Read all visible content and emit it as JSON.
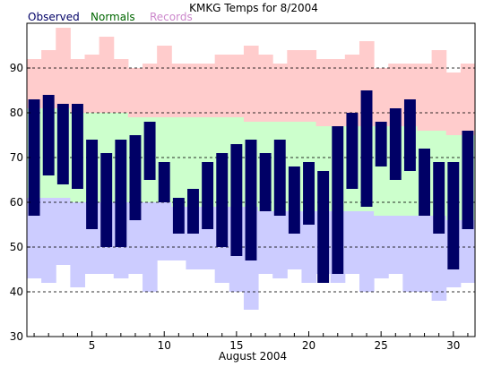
{
  "chart_data": {
    "type": "bar",
    "title": "KMKG Temps for 8/2004",
    "xlabel": "August 2004",
    "ylabel": "",
    "ylim": [
      30,
      100
    ],
    "yticks": [
      30,
      40,
      50,
      60,
      70,
      80,
      90
    ],
    "xticks": [
      5,
      10,
      15,
      20,
      25,
      30
    ],
    "grid": "dashed horizontal",
    "legend_placement": "top-left",
    "colors": {
      "observed": "#000066",
      "normals": "#ccffcc",
      "records": "#ffcccc",
      "record_low_band": "#ccccff",
      "observed_legend": "#000066",
      "normals_legend": "#006600",
      "records_legend": "#cc88cc"
    },
    "legend": [
      "Observed",
      "Normals",
      "Records"
    ],
    "days": [
      1,
      2,
      3,
      4,
      5,
      6,
      7,
      8,
      9,
      10,
      11,
      12,
      13,
      14,
      15,
      16,
      17,
      18,
      19,
      20,
      21,
      22,
      23,
      24,
      25,
      26,
      27,
      28,
      29,
      30,
      31
    ],
    "observed_high": [
      83,
      84,
      82,
      82,
      74,
      71,
      74,
      75,
      78,
      69,
      61,
      63,
      69,
      71,
      73,
      74,
      71,
      74,
      68,
      69,
      67,
      77,
      80,
      85,
      78,
      81,
      83,
      72,
      69,
      69,
      76
    ],
    "observed_low": [
      57,
      66,
      64,
      63,
      54,
      50,
      50,
      56,
      65,
      60,
      53,
      53,
      54,
      50,
      48,
      47,
      58,
      57,
      53,
      55,
      42,
      44,
      63,
      59,
      68,
      65,
      67,
      57,
      53,
      45,
      54
    ],
    "normal_high": [
      81,
      81,
      81,
      80,
      80,
      80,
      80,
      79,
      79,
      79,
      79,
      79,
      79,
      79,
      79,
      78,
      78,
      78,
      78,
      78,
      77,
      77,
      77,
      77,
      77,
      77,
      77,
      76,
      76,
      75,
      75
    ],
    "normal_low": [
      61,
      61,
      61,
      60,
      60,
      60,
      60,
      60,
      60,
      60,
      59,
      59,
      59,
      59,
      59,
      59,
      58,
      58,
      58,
      58,
      58,
      58,
      58,
      58,
      57,
      57,
      57,
      57,
      57,
      56,
      56
    ],
    "record_high": [
      92,
      94,
      99,
      92,
      93,
      97,
      92,
      90,
      91,
      95,
      91,
      91,
      91,
      93,
      93,
      95,
      93,
      91,
      94,
      94,
      92,
      92,
      93,
      96,
      90,
      91,
      91,
      91,
      94,
      89,
      91
    ],
    "record_low": [
      43,
      42,
      46,
      41,
      44,
      44,
      43,
      44,
      40,
      47,
      47,
      45,
      45,
      42,
      40,
      36,
      44,
      43,
      45,
      42,
      44,
      42,
      44,
      40,
      43,
      44,
      40,
      40,
      38,
      41,
      42
    ]
  }
}
